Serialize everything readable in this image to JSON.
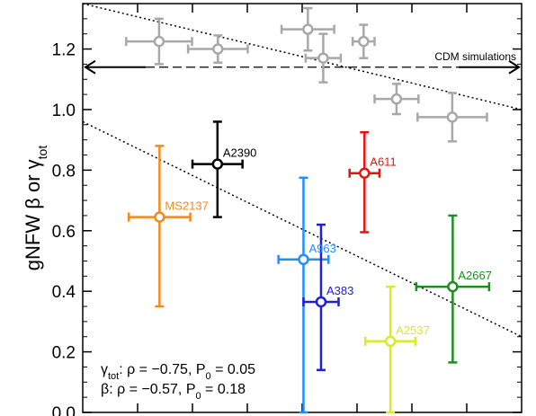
{
  "chart_data": {
    "type": "scatter",
    "ylabel_main": "gNFW β or γ",
    "ylabel_sub": "tot",
    "ylim": [
      0.0,
      1.35
    ],
    "y_ticks": [
      "0.0",
      "0.2",
      "0.4",
      "0.6",
      "0.8",
      "1.0",
      "1.2"
    ],
    "y_tick_values": [
      0.0,
      0.2,
      0.4,
      0.6,
      0.8,
      1.0,
      1.2
    ],
    "x_ticks_count": 7,
    "grid": false,
    "reference_band": {
      "label": "CDM simulations",
      "y": 1.14
    },
    "trend_lines": [
      {
        "x": [
          0.0,
          1.0
        ],
        "y": [
          1.35,
          1.0
        ]
      },
      {
        "x": [
          0.0,
          1.0
        ],
        "y": [
          0.96,
          0.25
        ]
      }
    ],
    "clusters": [
      {
        "label": "MS2137",
        "x": 0.175,
        "y": 0.645,
        "xerr": 0.07,
        "yerr_lo": 0.295,
        "yerr_hi": 0.235,
        "color": "#f08a1c"
      },
      {
        "label": "A2390",
        "x": 0.307,
        "y": 0.82,
        "xerr": 0.057,
        "yerr_lo": 0.175,
        "yerr_hi": 0.14,
        "color": "#000000"
      },
      {
        "label": "A963",
        "x": 0.503,
        "y": 0.505,
        "xerr": 0.057,
        "yerr_lo": 0.505,
        "yerr_hi": 0.27,
        "color": "#1e90ff"
      },
      {
        "label": "A383",
        "x": 0.543,
        "y": 0.365,
        "xerr": 0.04,
        "yerr_lo": 0.225,
        "yerr_hi": 0.255,
        "color": "#2020d8"
      },
      {
        "label": "A611",
        "x": 0.642,
        "y": 0.79,
        "xerr": 0.034,
        "yerr_lo": 0.195,
        "yerr_hi": 0.135,
        "color": "#e81212"
      },
      {
        "label": "A2537",
        "x": 0.701,
        "y": 0.235,
        "xerr": 0.057,
        "yerr_lo": 0.235,
        "yerr_hi": 0.18,
        "color": "#d4ec2c"
      },
      {
        "label": "A2667",
        "x": 0.843,
        "y": 0.415,
        "xerr": 0.083,
        "yerr_lo": 0.25,
        "yerr_hi": 0.235,
        "color": "#208c20"
      }
    ],
    "simulations": [
      {
        "x": 0.174,
        "y": 1.225,
        "xerr": 0.075,
        "yerr": 0.075
      },
      {
        "x": 0.308,
        "y": 1.2,
        "xerr": 0.068,
        "yerr": 0.045
      },
      {
        "x": 0.513,
        "y": 1.265,
        "xerr": 0.06,
        "yerr": 0.07
      },
      {
        "x": 0.548,
        "y": 1.17,
        "xerr": 0.04,
        "yerr": 0.08
      },
      {
        "x": 0.64,
        "y": 1.225,
        "xerr": 0.025,
        "yerr": 0.055
      },
      {
        "x": 0.715,
        "y": 1.035,
        "xerr": 0.05,
        "yerr": 0.05
      },
      {
        "x": 0.842,
        "y": 0.975,
        "xerr": 0.079,
        "yerr": 0.08
      }
    ],
    "sim_color": "#a8a8a8",
    "stats": [
      {
        "param_main": "γ",
        "param_sub": "tot",
        "text": ":  ρ = −0.75, P  = 0.05",
        "p_sub": "0"
      },
      {
        "param_main": "β:",
        "param_sub": "",
        "text": "   ρ = −0.57, P  = 0.18",
        "p_sub": "0"
      }
    ]
  }
}
